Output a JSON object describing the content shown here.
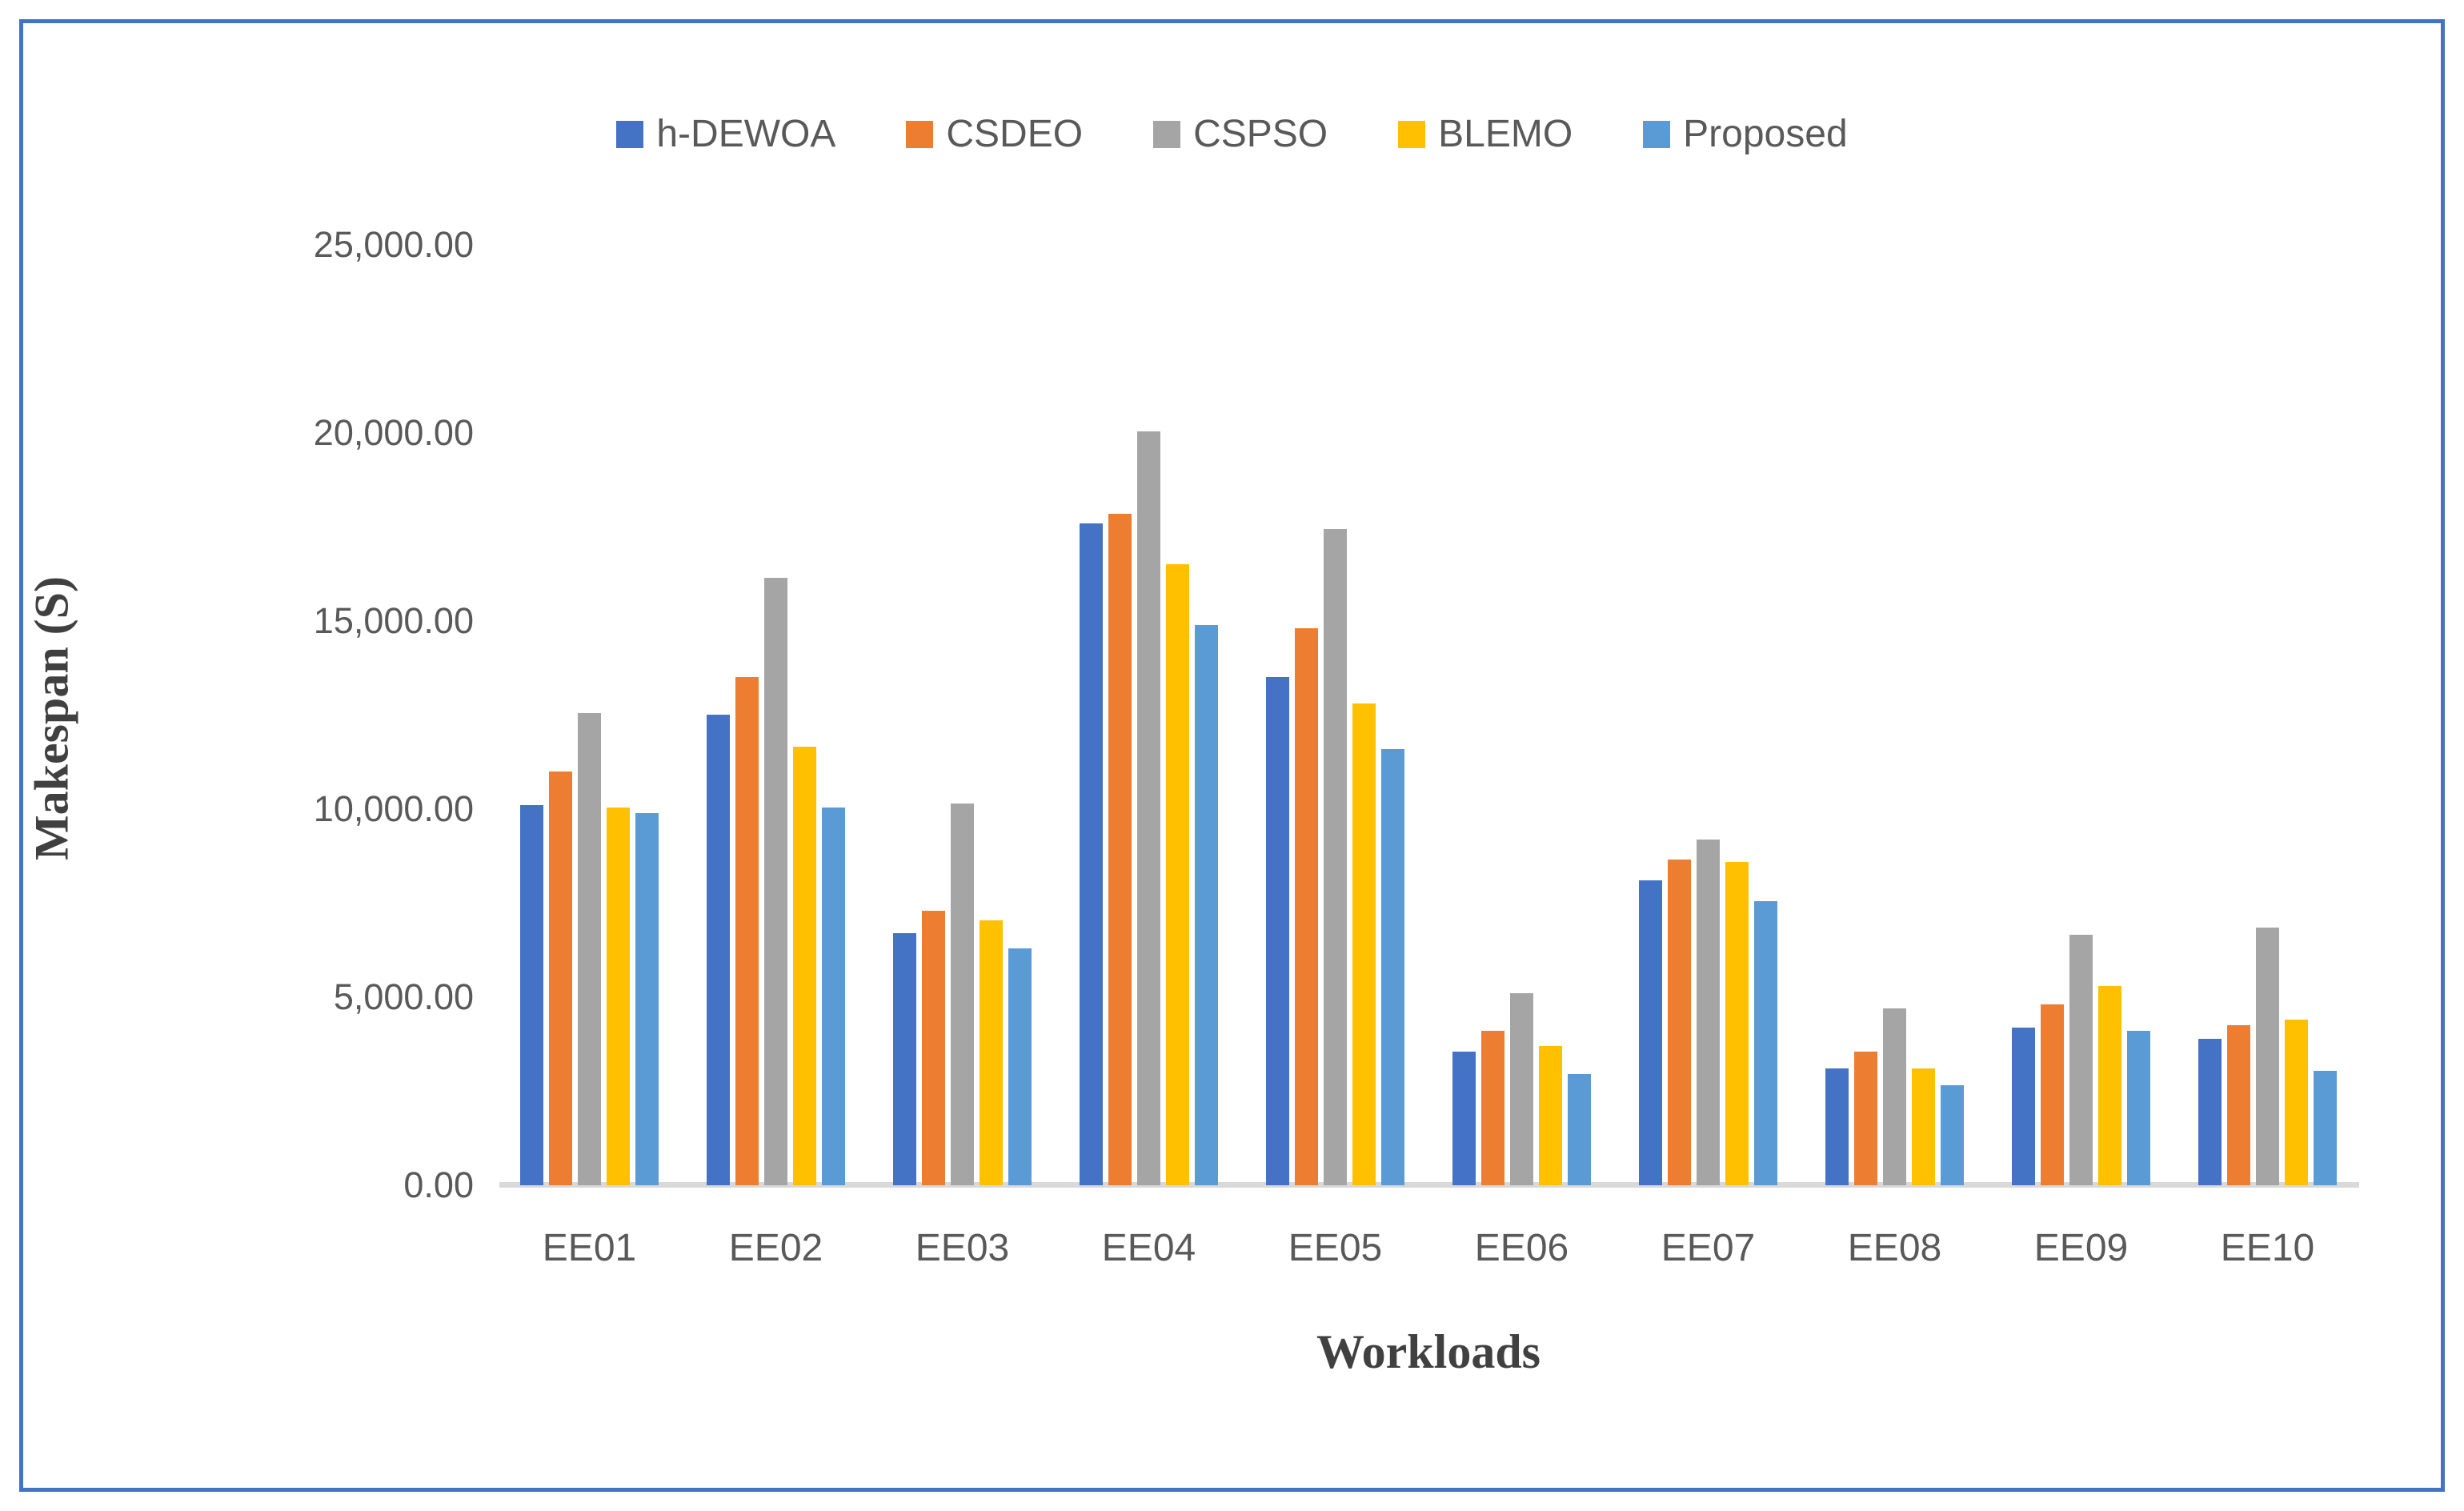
{
  "frame": {
    "border_color": "#4472C4",
    "background": "#FFFFFF"
  },
  "chart_data": {
    "type": "bar",
    "title": "",
    "xlabel": "Workloads",
    "ylabel": "Makespan (S)",
    "categories": [
      "EE01",
      "EE02",
      "EE03",
      "EE04",
      "EE05",
      "EE06",
      "EE07",
      "EE08",
      "EE09",
      "EE10"
    ],
    "series": [
      {
        "name": "h-DEWOA",
        "color": "#4472C4",
        "values": [
          10100,
          12500,
          6700,
          17600,
          13500,
          3550,
          8100,
          3100,
          4200,
          3900
        ]
      },
      {
        "name": "CSDEO",
        "color": "#ED7D31",
        "values": [
          11000,
          13500,
          7300,
          17850,
          14800,
          4100,
          8650,
          3550,
          4800,
          4250
        ]
      },
      {
        "name": "CSPSO",
        "color": "#A5A5A5",
        "values": [
          12550,
          16150,
          10150,
          20050,
          17450,
          5100,
          9200,
          4700,
          6650,
          6850
        ]
      },
      {
        "name": "BLEMO",
        "color": "#FFC000",
        "values": [
          10050,
          11650,
          7050,
          16500,
          12800,
          3700,
          8600,
          3100,
          5300,
          4400
        ]
      },
      {
        "name": "Proposed",
        "color": "#5B9BD5",
        "values": [
          9900,
          10050,
          6300,
          14900,
          11600,
          2950,
          7550,
          2650,
          4100,
          3050
        ]
      }
    ],
    "ylim": [
      0,
      25000
    ],
    "ytick_step": 5000,
    "yticks": [
      "25,000.00",
      "20,000.00",
      "15,000.00",
      "10,000.00",
      "5,000.00",
      "0.00"
    ],
    "grid": false,
    "legend_position": "top",
    "axis_line_color": "#D9D9D9",
    "tick_label_color": "#595959",
    "axis_title_color": "#404040"
  }
}
